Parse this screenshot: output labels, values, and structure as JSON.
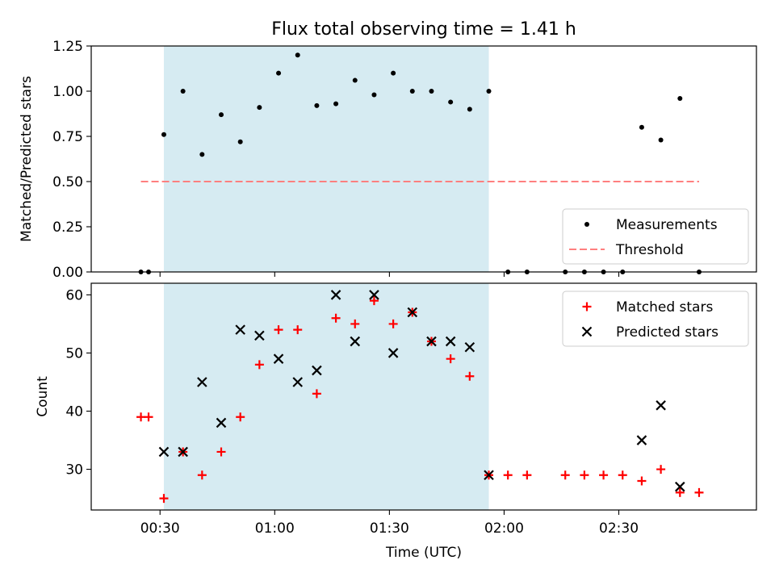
{
  "figure": {
    "title": "Flux total observing time = 1.41 h"
  },
  "chart_data": [
    {
      "type": "scatter",
      "panel": "top",
      "ylabel": "Matched/Predicted stars",
      "ylim": [
        0,
        1.25
      ],
      "yticks": [
        "0.00",
        "0.25",
        "0.50",
        "0.75",
        "1.00",
        "1.25"
      ],
      "ytick_values": [
        0,
        0.25,
        0.5,
        0.75,
        1.0,
        1.25
      ],
      "xlim": [
        "00:12",
        "03:06"
      ],
      "shaded_region": [
        "00:31",
        "01:56"
      ],
      "series": [
        {
          "name": "Measurements",
          "marker": "dot",
          "color": "#000000",
          "x": [
            "00:25",
            "00:27",
            "00:31",
            "00:36",
            "00:41",
            "00:46",
            "00:51",
            "00:56",
            "01:01",
            "01:06",
            "01:11",
            "01:16",
            "01:21",
            "01:26",
            "01:31",
            "01:36",
            "01:41",
            "01:46",
            "01:51",
            "01:56",
            "02:01",
            "02:06",
            "02:16",
            "02:21",
            "02:26",
            "02:31",
            "02:36",
            "02:41",
            "02:46",
            "02:51"
          ],
          "y": [
            0,
            0,
            0.76,
            1.0,
            0.65,
            0.87,
            0.72,
            0.91,
            1.1,
            1.2,
            0.92,
            0.93,
            1.06,
            0.98,
            1.1,
            1.0,
            1.0,
            0.94,
            0.9,
            1.0,
            0,
            0,
            0,
            0,
            0,
            0,
            0.8,
            0.73,
            0.96,
            0
          ]
        },
        {
          "name": "Threshold",
          "marker": "dashed-line",
          "color": "#ff7f7f",
          "x": [
            "00:25",
            "02:51"
          ],
          "y": [
            0.5,
            0.5
          ]
        }
      ],
      "legend": "lower-right"
    },
    {
      "type": "scatter",
      "panel": "bottom",
      "ylabel": "Count",
      "xlabel": "Time (UTC)",
      "ylim": [
        23,
        62
      ],
      "yticks": [
        "30",
        "40",
        "50",
        "60"
      ],
      "ytick_values": [
        30,
        40,
        50,
        60
      ],
      "xlim": [
        "00:12",
        "03:06"
      ],
      "xticks": [
        "00:30",
        "01:00",
        "01:30",
        "02:00",
        "02:30"
      ],
      "shaded_region": [
        "00:31",
        "01:56"
      ],
      "series": [
        {
          "name": "Matched stars",
          "marker": "plus",
          "color": "#ff0000",
          "x": [
            "00:25",
            "00:27",
            "00:31",
            "00:36",
            "00:41",
            "00:46",
            "00:51",
            "00:56",
            "01:01",
            "01:06",
            "01:11",
            "01:16",
            "01:21",
            "01:26",
            "01:31",
            "01:36",
            "01:41",
            "01:46",
            "01:51",
            "01:56",
            "02:01",
            "02:06",
            "02:16",
            "02:21",
            "02:26",
            "02:31",
            "02:36",
            "02:41",
            "02:46",
            "02:51"
          ],
          "y": [
            39,
            39,
            25,
            33,
            29,
            33,
            39,
            48,
            54,
            54,
            43,
            56,
            55,
            59,
            55,
            57,
            52,
            49,
            46,
            29,
            29,
            29,
            29,
            29,
            29,
            29,
            28,
            30,
            26,
            26
          ]
        },
        {
          "name": "Predicted stars",
          "marker": "x",
          "color": "#000000",
          "x": [
            "00:31",
            "00:36",
            "00:41",
            "00:46",
            "00:51",
            "00:56",
            "01:01",
            "01:06",
            "01:11",
            "01:16",
            "01:21",
            "01:26",
            "01:31",
            "01:36",
            "01:41",
            "01:46",
            "01:51",
            "01:56",
            "02:36",
            "02:41",
            "02:46"
          ],
          "y": [
            33,
            33,
            45,
            38,
            54,
            53,
            49,
            45,
            47,
            60,
            52,
            60,
            50,
            57,
            52,
            52,
            51,
            29,
            35,
            41,
            27
          ]
        }
      ],
      "legend": "upper-right"
    }
  ],
  "colors": {
    "shade": "#add8e6",
    "axes": "#000000"
  }
}
